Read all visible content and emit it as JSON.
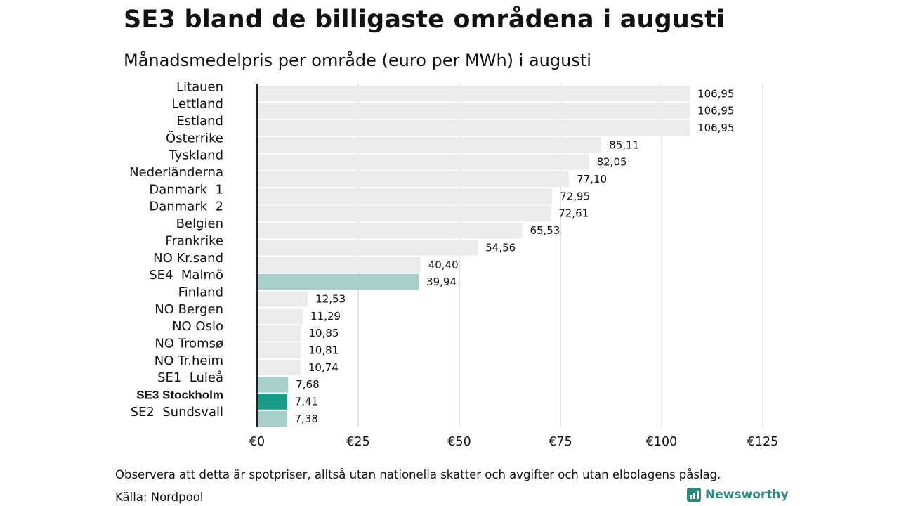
{
  "title": "SE3 bland de billigaste områdena i augusti",
  "subtitle": "Månadsmedelpris per område (euro per MWh) i augusti",
  "note": "Observera att detta är spotpriser, alltså utan nationella skatter och avgifter och utan elbolagens påslag.",
  "source": "Källa: Nordpool",
  "logo": {
    "text": "Newsworthy",
    "icon": "bar-chart-icon"
  },
  "colors": {
    "default_bar": "#ebebeb",
    "swedish_bar": "#a8d0ca",
    "highlight_bar": "#1a9a88",
    "grid": "#cccccc",
    "axis": "#222222"
  },
  "chart_data": {
    "type": "bar",
    "orientation": "horizontal",
    "categories": [
      "Litauen",
      "Lettland",
      "Estland",
      "Österrike",
      "Tyskland",
      "Nederländerna",
      "Danmark  1",
      "Danmark  2",
      "Belgien",
      "Frankrike",
      "NO Kr.sand",
      "SE4  Malmö",
      "Finland",
      "NO Bergen",
      "NO Oslo",
      "NO Tromsø",
      "NO Tr.heim",
      "SE1  Luleå",
      "SE3 Stockholm",
      "SE2  Sundsvall"
    ],
    "values": [
      106.95,
      106.95,
      106.95,
      85.11,
      82.05,
      77.1,
      72.95,
      72.61,
      65.53,
      54.56,
      40.4,
      39.94,
      12.53,
      11.29,
      10.85,
      10.81,
      10.74,
      7.68,
      7.41,
      7.38
    ],
    "value_labels": [
      "106,95",
      "106,95",
      "106,95",
      "85,11",
      "82,05",
      "77,10",
      "72,95",
      "72,61",
      "65,53",
      "54,56",
      "40,40",
      "39,94",
      "12,53",
      "11,29",
      "10,85",
      "10,81",
      "10,74",
      "7,68",
      "7,41",
      "7,38"
    ],
    "bar_colors": [
      "default",
      "default",
      "default",
      "default",
      "default",
      "default",
      "default",
      "default",
      "default",
      "default",
      "default",
      "swedish",
      "default",
      "default",
      "default",
      "default",
      "default",
      "swedish",
      "highlight",
      "swedish"
    ],
    "bold_categories": [
      "SE3 Stockholm"
    ],
    "xlim": [
      0,
      125
    ],
    "x_ticks": [
      0,
      25,
      50,
      75,
      100,
      125
    ],
    "x_tick_labels": [
      "€0",
      "€25",
      "€50",
      "€75",
      "€100",
      "€125"
    ],
    "grid": true
  }
}
